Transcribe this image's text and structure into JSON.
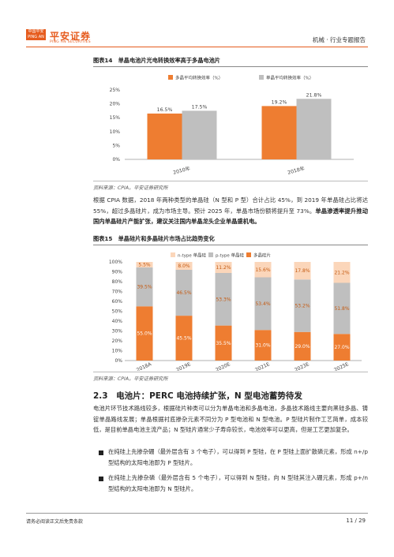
{
  "header": {
    "logo_badge": "中国平安\nPING AN",
    "logo_cn": "平安证券",
    "logo_en": "PING AN SECURITIES",
    "report_type": "机械 · 行业专题报告"
  },
  "figure14": {
    "title": "图表14　单晶电池片光电转换效率高于多晶电池片",
    "source": "资料来源：CPIA，平安证券研究所"
  },
  "paragraph1": {
    "normal": "根据 CPIA 数据，2018 年两种类型的单晶硅（N 型和 P 型）合计占比 45%，到 2019 年单晶硅占比将达 55%，超过多晶硅片，成为市场主导。预计 2025 年，单晶市场份额将提升至 73%。",
    "bold": "单晶渗透率提升推动国内单晶硅片产能扩张，建议关注国内单晶龙头企业单晶盛机电。"
  },
  "figure15": {
    "title": "图表15　单晶硅片和多晶硅片市场占比趋势变化",
    "source": "资料来源：CPIA，平安证券研究所"
  },
  "section": {
    "title": "2.3　电池片：PERC 电池持续扩张，N 型电池蓄势待发",
    "body": "电池片环节技术路线较多，根据硅片种类可以分为单晶电池和多晶电池，多晶技术路线主要向黑硅多晶、铸锭单晶路线发展；单晶根据衬底掺杂元素不同分为 P 型电池和 N 型电池。P 型硅片制作工艺简单，成本较低，是目前单晶电池主流产品；N 型硅片通常少子寿命较长，电池效率可以更高，但是工艺更加复杂。",
    "bullets": [
      "在纯硅上先掺杂硼（最外层含有 3 个电子），可以得到 P 型硅，在 P 型硅上面扩散磷元素，形成 n+/p 型结构的太阳电池即为 P 型硅片。",
      "在纯硅上先掺杂磷（最外层含有 5 个电子），可以得到 N 型硅，向 N 型硅其注入硼元素，形成 p+/n 型结构的太阳电池即为 N 型硅片。"
    ]
  },
  "footer": {
    "disclaimer": "请务必阅读正文后免责条款",
    "page": "11 / 29"
  },
  "chart_data": [
    {
      "type": "bar",
      "categories": [
        "2010年",
        "2018年"
      ],
      "series": [
        {
          "name": "多晶平均转换效率（%）",
          "values": [
            16.5,
            19.2
          ],
          "labels": [
            "16.5%",
            "19.2%"
          ],
          "color": "#ee7d31"
        },
        {
          "name": "单晶平均转换效率（%）",
          "values": [
            17.5,
            21.8
          ],
          "labels": [
            "17.5%",
            "21.8%"
          ],
          "color": "#bfbfbf"
        }
      ],
      "yticks": [
        "0%",
        "5%",
        "10%",
        "15%",
        "20%",
        "25%"
      ],
      "ylim": [
        0,
        25
      ],
      "legend": "top"
    },
    {
      "type": "bar",
      "stacked": true,
      "categories": [
        "2018A",
        "2019E",
        "2020E",
        "2021E",
        "2023E",
        "2025E"
      ],
      "series": [
        {
          "name": "多晶硅片",
          "values": [
            55.0,
            45.5,
            35.5,
            31.0,
            29.0,
            27.0
          ],
          "labels": [
            "55.0%",
            "45.5%",
            "35.5%",
            "31.0%",
            "29.0%",
            "27.0%"
          ],
          "color": "#ee7d31"
        },
        {
          "name": "p-type 单晶硅",
          "values": [
            39.5,
            46.5,
            53.3,
            53.4,
            53.2,
            51.8
          ],
          "labels": [
            "39.5%",
            "46.5%",
            "53.3%",
            "53.4%",
            "53.2%",
            "51.8%"
          ],
          "color": "#bfbfbf"
        },
        {
          "name": "n-type 单晶硅",
          "values": [
            5.5,
            8.0,
            11.2,
            15.6,
            17.8,
            21.2
          ],
          "labels": [
            "5.5%",
            "8.0%",
            "11.2%",
            "15.6%",
            "17.8%",
            "21.2%"
          ],
          "color": "#fbd6ba"
        }
      ],
      "yticks": [
        "0%",
        "10%",
        "20%",
        "30%",
        "40%",
        "50%",
        "60%",
        "70%",
        "80%",
        "90%",
        "100%"
      ],
      "ylim": [
        0,
        100
      ],
      "legend": "top"
    }
  ]
}
